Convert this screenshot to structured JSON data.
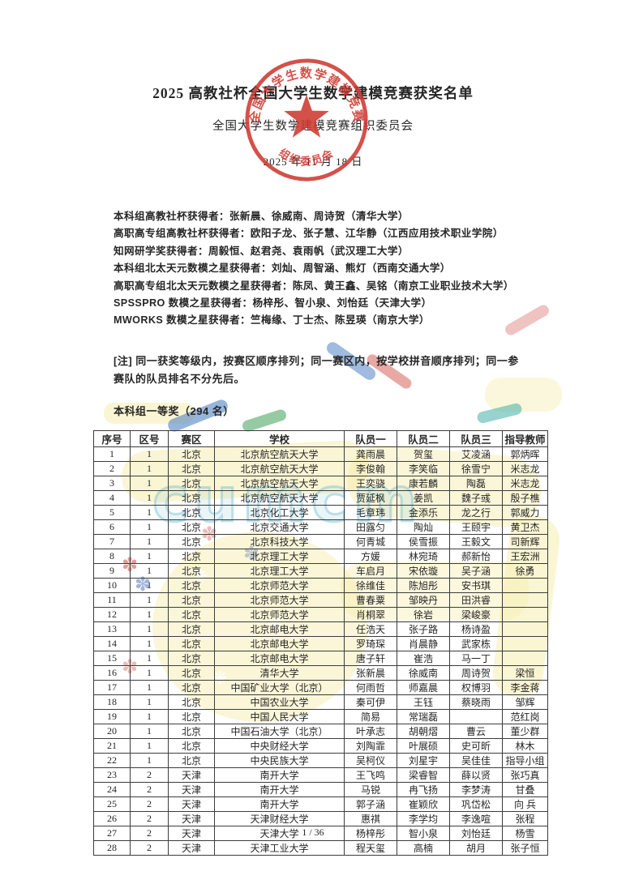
{
  "header": {
    "title": "2025 高教社杯全国大学生数学建模竞赛获奖名单",
    "org": "全国大学生数学建模竞赛组织委员会",
    "date": "2025 年 11 月 18 日"
  },
  "stamp": {
    "arc_text": "全国大学生数学建模竞赛",
    "bottom_text": "组织委员会",
    "color": "#cf3a32"
  },
  "awards": [
    "本科组高教社杯获得者：张新晨、徐威南、周诗贺（清华大学）",
    "高职高专组高教社杯获得者：欧阳子龙、张子慧、江华静（江西应用技术职业学院）",
    "知网研学奖获得者：周毅恒、赵君尧、袁雨帆（武汉理工大学）",
    "本科组北太天元数模之星获得者：刘灿、周智涵、熊灯（西南交通大学）",
    "高职高专组北太天元数模之星获得者：陈凤、黄王鑫、吴铭（南京工业职业技术大学）",
    "SPSSPRO 数模之星获得者：杨梓彤、智小泉、刘怡廷（天津大学）",
    "MWORKS 数模之星获得者：竺梅缘、丁士杰、陈昱瑛（南京大学）"
  ],
  "note": "[注] 同一获奖等级内，按赛区顺序排列；同一赛区内，按学校拼音顺序排列；同一参赛队的队员排名不分先后。",
  "section_title": "本科组一等奖（294 名）",
  "watermark": {
    "text": "cumcm"
  },
  "table": {
    "headers": [
      "序号",
      "区号",
      "赛区",
      "学校",
      "队员一",
      "队员二",
      "队员三",
      "指导教师"
    ],
    "rows": [
      [
        "1",
        "1",
        "北京",
        "北京航空航天大学",
        "龚雨晨",
        "贺玺",
        "艾凌涵",
        "郭炳晖"
      ],
      [
        "2",
        "1",
        "北京",
        "北京航空航天大学",
        "李俊翰",
        "李笑临",
        "徐雪宁",
        "米志龙"
      ],
      [
        "3",
        "1",
        "北京",
        "北京航空航天大学",
        "王奕骁",
        "康若麟",
        "陶磊",
        "米志龙"
      ],
      [
        "4",
        "1",
        "北京",
        "北京航空航天大学",
        "贾延枫",
        "姜凯",
        "魏子彧",
        "殷子樵"
      ],
      [
        "5",
        "1",
        "北京",
        "北京化工大学",
        "毛章玮",
        "金添乐",
        "龙之行",
        "郭威力"
      ],
      [
        "6",
        "1",
        "北京",
        "北京交通大学",
        "田露匀",
        "陶灿",
        "王颐宇",
        "黄卫杰"
      ],
      [
        "7",
        "1",
        "北京",
        "北京科技大学",
        "何青城",
        "侯雪振",
        "王毅文",
        "司新辉"
      ],
      [
        "8",
        "1",
        "北京",
        "北京理工大学",
        "方媛",
        "林宛琦",
        "郝新怡",
        "王宏洲"
      ],
      [
        "9",
        "1",
        "北京",
        "北京理工大学",
        "车启月",
        "宋依璇",
        "吴子涵",
        "徐勇"
      ],
      [
        "10",
        "1",
        "北京",
        "北京师范大学",
        "徐维佳",
        "陈旭彤",
        "安书琪",
        ""
      ],
      [
        "11",
        "1",
        "北京",
        "北京师范大学",
        "曹春粟",
        "邹映丹",
        "田洪睿",
        ""
      ],
      [
        "12",
        "1",
        "北京",
        "北京师范大学",
        "肖桐翠",
        "徐岩",
        "梁峻豪",
        ""
      ],
      [
        "13",
        "1",
        "北京",
        "北京邮电大学",
        "任浩天",
        "张子路",
        "杨诗盈",
        ""
      ],
      [
        "14",
        "1",
        "北京",
        "北京邮电大学",
        "罗琦琛",
        "肖晨静",
        "武家栋",
        ""
      ],
      [
        "15",
        "1",
        "北京",
        "北京邮电大学",
        "唐子轩",
        "崔浩",
        "马一丁",
        ""
      ],
      [
        "16",
        "1",
        "北京",
        "清华大学",
        "张新晨",
        "徐威南",
        "周诗贺",
        "梁恒"
      ],
      [
        "17",
        "1",
        "北京",
        "中国矿业大学（北京）",
        "何雨哲",
        "师嘉晨",
        "权博羽",
        "李金蒋"
      ],
      [
        "18",
        "1",
        "北京",
        "中国农业大学",
        "秦可伊",
        "王钰",
        "蔡晓雨",
        "邹辉"
      ],
      [
        "19",
        "1",
        "北京",
        "中国人民大学",
        "简易",
        "常瑞磊",
        "",
        "范红岗"
      ],
      [
        "20",
        "1",
        "北京",
        "中国石油大学（北京）",
        "叶承志",
        "胡朝熠",
        "曹云",
        "董少群"
      ],
      [
        "21",
        "1",
        "北京",
        "中央财经大学",
        "刘陶霏",
        "叶展硕",
        "史可昕",
        "林木"
      ],
      [
        "22",
        "1",
        "北京",
        "中央民族大学",
        "吴柯仪",
        "刘星宇",
        "吴佳佳",
        "指导小组"
      ],
      [
        "23",
        "2",
        "天津",
        "南开大学",
        "王飞鸣",
        "梁睿智",
        "薛以贤",
        "张巧真"
      ],
      [
        "24",
        "2",
        "天津",
        "南开大学",
        "马锐",
        "冉飞扬",
        "李梦涛",
        "甘叠"
      ],
      [
        "25",
        "2",
        "天津",
        "南开大学",
        "郭子涵",
        "崔颖欣",
        "巩岱松",
        "向 兵"
      ],
      [
        "26",
        "2",
        "天津",
        "天津财经大学",
        "惠祺",
        "李学均",
        "李逸喧",
        "张程"
      ],
      [
        "27",
        "2",
        "天津",
        "天津大学",
        "杨梓彤",
        "智小泉",
        "刘怡廷",
        "杨雪"
      ],
      [
        "28",
        "2",
        "天津",
        "天津工业大学",
        "程天玺",
        "高楠",
        "胡月",
        "张子恒"
      ]
    ]
  },
  "footer": {
    "page_indicator": "1 / 36"
  },
  "colors": {
    "stamp_red": "#cf3a32",
    "text": "#262626",
    "table_border": "#3c3c3c",
    "watermark_yellow": "#f6eca8",
    "watermark_cyan": "#78bed4",
    "watermark_blue": "#3f78c0",
    "watermark_green": "#3f9e55",
    "watermark_red": "#d2544a"
  }
}
